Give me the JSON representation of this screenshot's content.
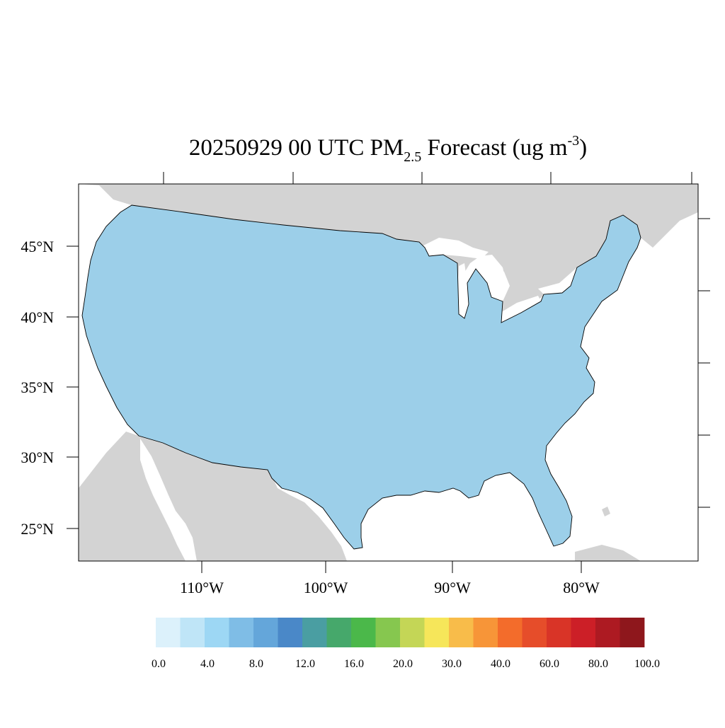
{
  "title": {
    "prefix": "20250929 00 UTC PM",
    "subscript": "2.5",
    "suffix": " Forecast (ug m",
    "superscript": "-3",
    "closing": ")"
  },
  "map": {
    "projection": "lambert-conformal",
    "region": "CONUS",
    "background_land_color": "#d3d3d3",
    "water_color": "#ffffff",
    "county_line_color": "#000000",
    "lat_labels": [
      "45°N",
      "40°N",
      "35°N",
      "30°N",
      "25°N"
    ],
    "lon_labels": [
      "110°W",
      "100°W",
      "90°W",
      "80°W"
    ]
  },
  "colorbar": {
    "colors": [
      "#dcf1fb",
      "#bfe5f7",
      "#9dd7f4",
      "#7fbde6",
      "#64a6da",
      "#4a88c8",
      "#4a9ea2",
      "#46a86b",
      "#4bb84a",
      "#86c74f",
      "#c4d656",
      "#f6e65a",
      "#f8bc4a",
      "#f79538",
      "#f36c2b",
      "#e64d2a",
      "#d93427",
      "#cc1f27",
      "#ad1a22",
      "#8e171c"
    ],
    "labels": [
      "0.0",
      "4.0",
      "8.0",
      "12.0",
      "16.0",
      "20.0",
      "30.0",
      "40.0",
      "60.0",
      "80.0",
      "100.0"
    ]
  }
}
